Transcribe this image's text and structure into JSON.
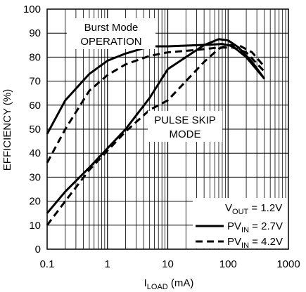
{
  "chart_data": {
    "type": "line",
    "title": "",
    "xlabel": {
      "main": "I",
      "sub": "LOAD",
      "rest": " (mA)"
    },
    "ylabel": "EFFICIENCY (%)",
    "xscale": "log",
    "xlim": [
      0.1,
      1000
    ],
    "ylim": [
      0,
      100
    ],
    "grid": true,
    "x_ticks": [
      {
        "value": 0.1,
        "label": "0.1"
      },
      {
        "value": 1,
        "label": "1"
      },
      {
        "value": 10,
        "label": "10"
      },
      {
        "value": 100,
        "label": "100"
      },
      {
        "value": 1000,
        "label": "1000"
      }
    ],
    "y_ticks": [
      {
        "value": 0,
        "label": "0"
      },
      {
        "value": 10,
        "label": "10"
      },
      {
        "value": 20,
        "label": "20"
      },
      {
        "value": 30,
        "label": "30"
      },
      {
        "value": 40,
        "label": "40"
      },
      {
        "value": 50,
        "label": "50"
      },
      {
        "value": 60,
        "label": "60"
      },
      {
        "value": 70,
        "label": "70"
      },
      {
        "value": 80,
        "label": "80"
      },
      {
        "value": 90,
        "label": "90"
      },
      {
        "value": 100,
        "label": "100"
      }
    ],
    "annotations": [
      {
        "id": "burst",
        "lines": [
          "Burst Mode",
          "OPERATION"
        ]
      },
      {
        "id": "pulse",
        "lines": [
          "PULSE SKIP",
          "MODE"
        ]
      }
    ],
    "legend": {
      "placement": "bottom-right",
      "header": {
        "main": "V",
        "sub": "OUT",
        "rest": " = 1.2V"
      },
      "entries": [
        {
          "main": "PV",
          "sub": "IN",
          "rest": " = 2.7V",
          "style": "solid"
        },
        {
          "main": "PV",
          "sub": "IN",
          "rest": " = 4.2V",
          "style": "dashed"
        }
      ]
    },
    "series": [
      {
        "mode": "burst",
        "style": "solid",
        "points": [
          [
            0.1,
            48
          ],
          [
            0.2,
            62
          ],
          [
            0.5,
            73
          ],
          [
            1,
            78.5
          ],
          [
            2,
            81.5
          ],
          [
            5,
            84.5
          ],
          [
            10,
            84.5
          ],
          [
            20,
            84.8
          ],
          [
            50,
            85.2
          ],
          [
            80,
            85.5
          ],
          [
            120,
            84.5
          ],
          [
            200,
            80
          ],
          [
            400,
            71
          ]
        ]
      },
      {
        "mode": "burst",
        "style": "dashed",
        "points": [
          [
            0.1,
            36
          ],
          [
            0.2,
            50
          ],
          [
            0.5,
            66
          ],
          [
            1,
            72.5
          ],
          [
            2,
            77
          ],
          [
            5,
            80.5
          ],
          [
            10,
            82
          ],
          [
            30,
            83
          ],
          [
            70,
            84
          ],
          [
            120,
            84
          ],
          [
            200,
            82
          ],
          [
            400,
            74
          ]
        ]
      },
      {
        "mode": "pulse skip",
        "style": "solid",
        "points": [
          [
            0.1,
            15
          ],
          [
            0.2,
            24
          ],
          [
            0.5,
            34
          ],
          [
            1,
            42
          ],
          [
            2,
            50
          ],
          [
            5,
            63
          ],
          [
            10,
            75
          ],
          [
            20,
            80
          ],
          [
            40,
            85
          ],
          [
            70,
            87.5
          ],
          [
            100,
            87
          ],
          [
            150,
            84
          ],
          [
            250,
            78
          ],
          [
            400,
            71
          ]
        ]
      },
      {
        "mode": "pulse skip",
        "style": "dashed",
        "points": [
          [
            0.1,
            10
          ],
          [
            0.2,
            20
          ],
          [
            0.5,
            33
          ],
          [
            1,
            41
          ],
          [
            2,
            49
          ],
          [
            5,
            58
          ],
          [
            10,
            62
          ],
          [
            20,
            70
          ],
          [
            40,
            78
          ],
          [
            70,
            83.5
          ],
          [
            100,
            85
          ],
          [
            150,
            85
          ],
          [
            250,
            82
          ],
          [
            400,
            76
          ]
        ]
      }
    ]
  }
}
